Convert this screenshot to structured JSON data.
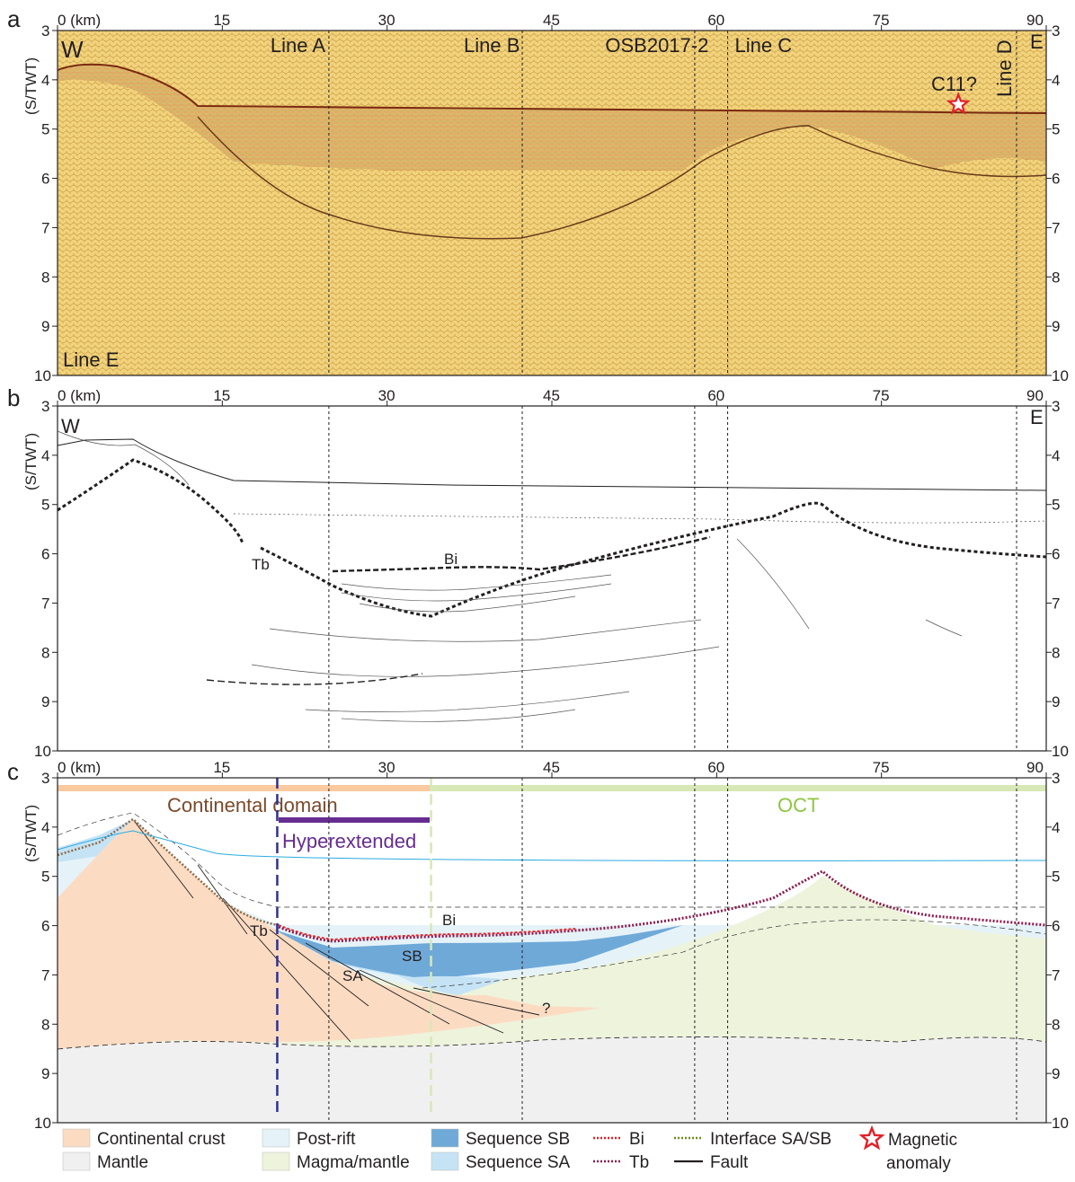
{
  "panels": {
    "a": {
      "label": "a",
      "west": "W",
      "east": "E",
      "line_name": "Line E",
      "annotation": "C11?"
    },
    "b": {
      "label": "b",
      "west": "W",
      "east": "E",
      "reflector_bi": "Bi",
      "reflector_tb": "Tb"
    },
    "c": {
      "label": "c",
      "domain_continental": "Continental domain",
      "domain_oct": "OCT",
      "hyperextended": "Hyperextended",
      "lbl_tb": "Tb",
      "lbl_bi": "Bi",
      "lbl_sb": "SB",
      "lbl_sa": "SA",
      "lbl_q": "?"
    }
  },
  "axes": {
    "y_label": "(S/TWT)",
    "x_ticks": [
      "0 (km)",
      "15",
      "30",
      "45",
      "60",
      "75",
      "90"
    ],
    "x_values_km": [
      0,
      15,
      30,
      45,
      60,
      75,
      90
    ],
    "y_ticks": [
      "3",
      "4",
      "5",
      "6",
      "7",
      "8",
      "9",
      "10"
    ],
    "y_values": [
      3,
      4,
      5,
      6,
      7,
      8,
      9,
      10
    ],
    "x_range_km": [
      0,
      90
    ],
    "y_range_twt": [
      3,
      10
    ]
  },
  "crossing_lines": [
    {
      "name": "Line A",
      "km": 24.7
    },
    {
      "name": "Line B",
      "km": 42.3
    },
    {
      "name": "OSB2017-2",
      "km": 58.0
    },
    {
      "name": "Line C",
      "km": 61.0
    },
    {
      "name": "Line D",
      "km": 87.3
    }
  ],
  "boundaries": [
    {
      "name": "hyperextended-start",
      "km": 20.0,
      "color": "#2e3192"
    },
    {
      "name": "oct-start",
      "km": 34.0,
      "color": "#d7e8b6"
    }
  ],
  "magnetic_anomaly": {
    "label": "C11?",
    "km": 82,
    "twt": 4.5
  },
  "legend": [
    {
      "key": "continental-crust",
      "label": "Continental crust",
      "kind": "box",
      "color": "#fbdcc3"
    },
    {
      "key": "mantle",
      "label": "Mantle",
      "kind": "box",
      "color": "#f0f0f1"
    },
    {
      "key": "post-rift",
      "label": "Post-rift",
      "kind": "box",
      "color": "#e5f3f8"
    },
    {
      "key": "magma-mantle",
      "label": "Magma/mantle",
      "kind": "box",
      "color": "#eef3dc"
    },
    {
      "key": "sequence-sb",
      "label": "Sequence SB",
      "kind": "box",
      "color": "#6fa9d8"
    },
    {
      "key": "sequence-sa",
      "label": "Sequence SA",
      "kind": "box",
      "color": "#c5e3f5"
    },
    {
      "key": "bi",
      "label": "Bi",
      "kind": "dotline",
      "color": "#e32128"
    },
    {
      "key": "tb",
      "label": "Tb",
      "kind": "dotline",
      "color": "#8b1a4e"
    },
    {
      "key": "interface-sa-sb",
      "label": "Interface SA/SB",
      "kind": "dotline",
      "color": "#6b8e23"
    },
    {
      "key": "fault",
      "label": "Fault",
      "kind": "line",
      "color": "#231f20"
    },
    {
      "key": "magnetic-anomaly",
      "label": "Magnetic anomaly",
      "kind": "star",
      "color": "#e32128"
    }
  ],
  "colors": {
    "continental_crust": "#fbdcc3",
    "mantle": "#f0f0f1",
    "post_rift": "#e5f3f8",
    "magma_mantle": "#eef3dc",
    "sequence_sb": "#6fa9d8",
    "sequence_sa": "#c5e3f5",
    "continental_bar": "#f9c9a0",
    "oct_bar": "#d7e8b6",
    "hyper_bar": "#662d91",
    "seismic_bg": "#f2d27a",
    "label_brown": "#7a4a2a",
    "label_green": "#8dc63f",
    "label_purple": "#662d91"
  }
}
